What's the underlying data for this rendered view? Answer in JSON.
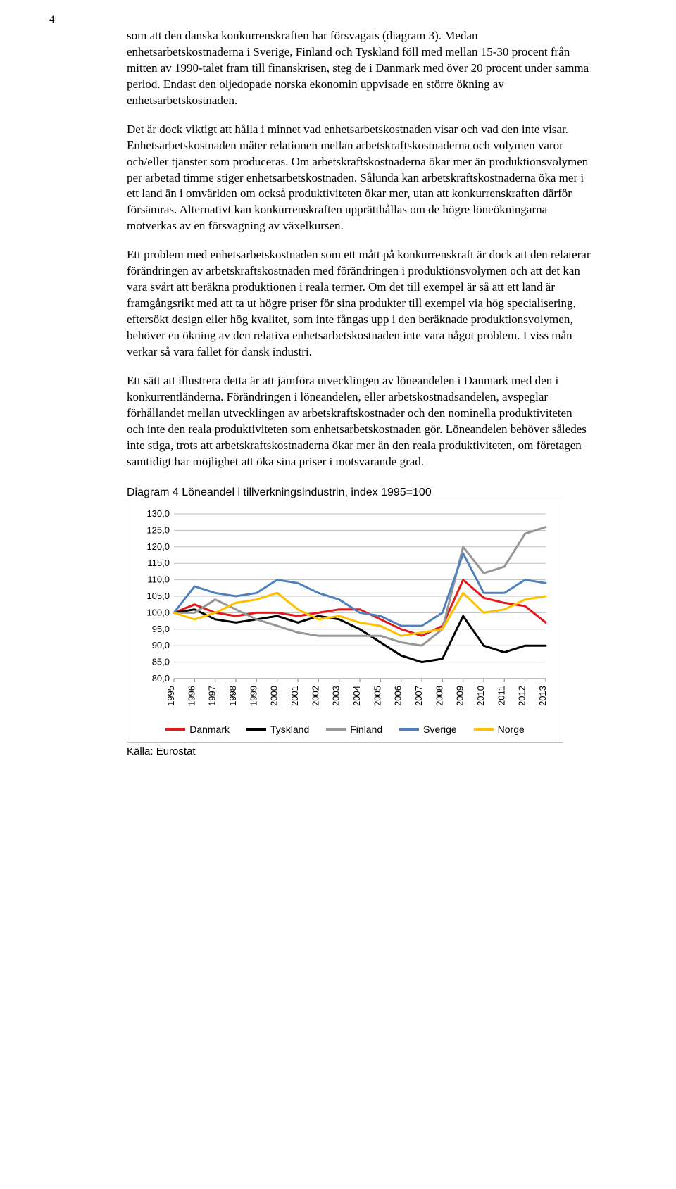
{
  "pageNumber": "4",
  "paragraphs": {
    "p1": "som att den danska konkurrenskraften har försvagats (diagram 3). Medan enhetsarbetskostnaderna i Sverige, Finland och Tyskland föll med mellan 15-30 procent från mitten av 1990-talet fram till finanskrisen, steg de i Danmark med över 20 procent under samma period. Endast den oljedopade norska ekonomin uppvisade en större ökning av enhetsarbetskostnaden.",
    "p2": "Det är dock viktigt att hålla i minnet vad enhetsarbetskostnaden visar och vad den inte visar. Enhetsarbetskostnaden mäter relationen mellan arbetskraftskostnaderna och volymen varor och/eller tjänster som produceras. Om arbetskraftskostnaderna ökar mer än produktionsvolymen per arbetad timme stiger enhetsarbetskostnaden. Sålunda kan arbetskraftskostnaderna öka mer i ett land än i omvärlden om också produktiviteten ökar mer, utan att konkurrenskraften därför försämras. Alternativt kan konkurrenskraften upprätthållas om de högre löneökningarna motverkas av en försvagning av växelkursen.",
    "p3": "Ett problem med enhetsarbetskostnaden som ett mått på konkurrenskraft är dock att den relaterar förändringen av arbetskraftskostnaden med förändringen i produktionsvolymen och att det kan vara svårt att beräkna produktionen i reala termer. Om det till exempel är så att ett land är framgångsrikt med att ta ut högre priser för sina produkter till exempel via hög specialisering, eftersökt design eller hög kvalitet, som inte fångas upp i den beräknade produktionsvolymen, behöver en ökning av den relativa enhetsarbetskostnaden inte vara något problem. I viss mån verkar så vara fallet för dansk industri.",
    "p4": "Ett sätt att illustrera detta är att jämföra utvecklingen av löneandelen i Danmark med den i konkurrentländerna. Förändringen i löneandelen, eller arbetskostnadsandelen, avspeglar förhållandet mellan utvecklingen av arbetskraftskostnader och den nominella produktiviteten och inte den reala produktiviteten som enhetsarbetskostnaden gör. Löneandelen behöver således inte stiga, trots att arbetskraftskostnaderna ökar mer än den reala produktiviteten, om företagen samtidigt har möjlighet att öka sina priser i motsvarande grad."
  },
  "chart": {
    "titlePrefix": "Diagram 4",
    "titleRest": "  Löneandel i tillverkningsindustrin, index 1995=100",
    "type": "line",
    "years": [
      "1995",
      "1996",
      "1997",
      "1998",
      "1999",
      "2000",
      "2001",
      "2002",
      "2003",
      "2004",
      "2005",
      "2006",
      "2007",
      "2008",
      "2009",
      "2010",
      "2011",
      "2012",
      "2013"
    ],
    "ylim": [
      80,
      130
    ],
    "ytick_step": 5,
    "ytick_labels": [
      "80,0",
      "85,0",
      "90,0",
      "95,0",
      "100,0",
      "105,0",
      "110,0",
      "115,0",
      "120,0",
      "125,0",
      "130,0"
    ],
    "line_width": 3,
    "grid_color": "#bfbfbf",
    "axis_color": "#808080",
    "background_color": "#ffffff",
    "tick_font_size": 13,
    "series": [
      {
        "name": "Danmark",
        "color": "#e31a1c",
        "values": [
          100,
          102.5,
          100,
          99,
          100,
          100,
          99,
          100,
          101,
          101,
          98,
          95,
          93,
          96,
          110,
          104.5,
          103,
          102,
          97
        ]
      },
      {
        "name": "Tyskland",
        "color": "#000000",
        "values": [
          100,
          101,
          98,
          97,
          98,
          99,
          97,
          99,
          98,
          95,
          91,
          87,
          85,
          86,
          99,
          90,
          88,
          90,
          90
        ]
      },
      {
        "name": "Finland",
        "color": "#969696",
        "values": [
          100,
          100,
          104,
          101,
          98,
          96,
          94,
          93,
          93,
          93,
          93,
          91,
          90,
          95,
          120,
          112,
          114,
          124,
          126
        ]
      },
      {
        "name": "Sverige",
        "color": "#4f81bd",
        "values": [
          100,
          108,
          106,
          105,
          106,
          110,
          109,
          106,
          104,
          100,
          99,
          96,
          96,
          100,
          118,
          106,
          106,
          110,
          109
        ]
      },
      {
        "name": "Norge",
        "color": "#ffc000",
        "values": [
          100,
          98,
          100,
          103,
          104,
          106,
          101,
          98,
          99,
          97,
          96,
          93,
          94,
          95,
          106,
          100,
          101,
          104,
          105
        ]
      }
    ]
  },
  "source": "Källa: Eurostat"
}
